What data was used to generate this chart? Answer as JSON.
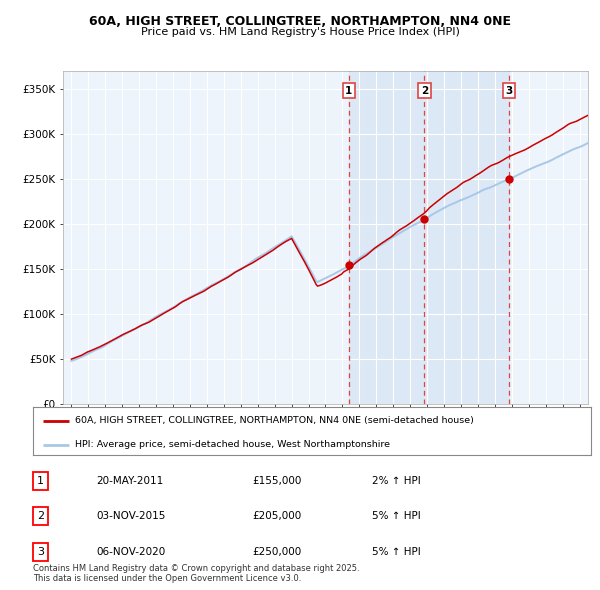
{
  "title_line1": "60A, HIGH STREET, COLLINGTREE, NORTHAMPTON, NN4 0NE",
  "title_line2": "Price paid vs. HM Land Registry's House Price Index (HPI)",
  "ylabel_ticks": [
    "£0",
    "£50K",
    "£100K",
    "£150K",
    "£200K",
    "£250K",
    "£300K",
    "£350K"
  ],
  "ytick_values": [
    0,
    50000,
    100000,
    150000,
    200000,
    250000,
    300000,
    350000
  ],
  "ylim": [
    0,
    370000
  ],
  "xlim_start": 1994.5,
  "xlim_end": 2025.5,
  "sale_dates": [
    2011.38,
    2015.84,
    2020.84
  ],
  "sale_prices": [
    155000,
    205000,
    250000
  ],
  "sale_labels": [
    "1",
    "2",
    "3"
  ],
  "hpi_color": "#A8C8E8",
  "price_color": "#CC0000",
  "vline_color": "#DD4444",
  "background_chart": "#EEF4FB",
  "background_highlight": "#DCE8F5",
  "legend_label_red": "60A, HIGH STREET, COLLINGTREE, NORTHAMPTON, NN4 0NE (semi-detached house)",
  "legend_label_blue": "HPI: Average price, semi-detached house, West Northamptonshire",
  "table_entries": [
    {
      "num": "1",
      "date": "20-MAY-2011",
      "price": "£155,000",
      "change": "2% ↑ HPI"
    },
    {
      "num": "2",
      "date": "03-NOV-2015",
      "price": "£205,000",
      "change": "5% ↑ HPI"
    },
    {
      "num": "3",
      "date": "06-NOV-2020",
      "price": "£250,000",
      "change": "5% ↑ HPI"
    }
  ],
  "footer": "Contains HM Land Registry data © Crown copyright and database right 2025.\nThis data is licensed under the Open Government Licence v3.0."
}
